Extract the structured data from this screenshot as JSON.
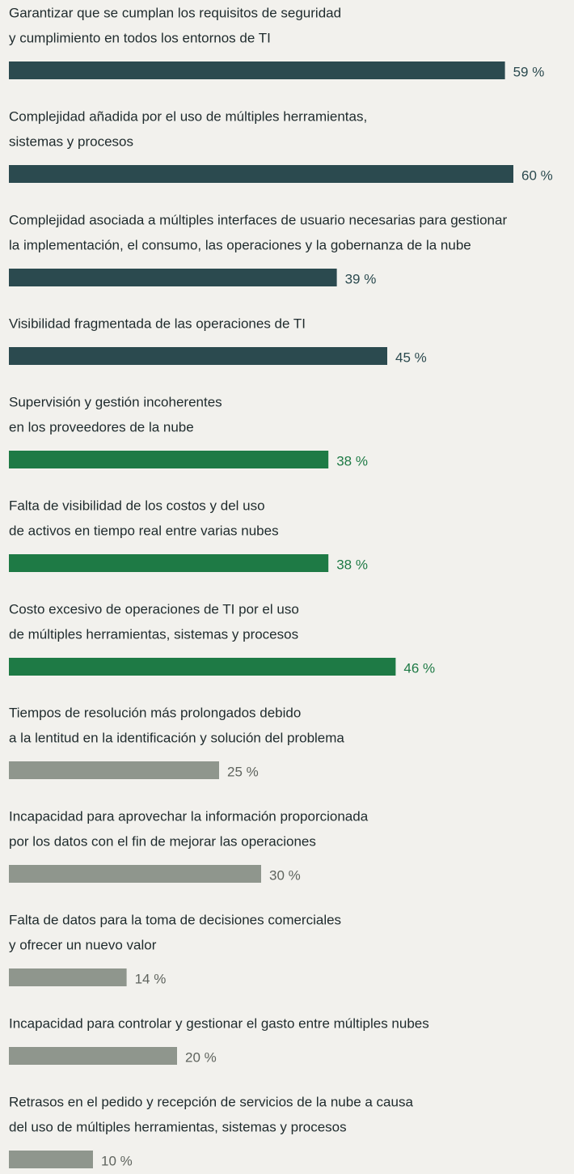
{
  "chart_data": {
    "type": "bar",
    "orientation": "horizontal",
    "categories": [
      [
        "Garantizar que se cumplan los requisitos de seguridad",
        "y cumplimiento en todos los entornos de TI"
      ],
      [
        "Complejidad añadida por el uso de múltiples herramientas,",
        "sistemas y procesos"
      ],
      [
        "Complejidad asociada a múltiples interfaces de usuario necesarias para gestionar",
        "la implementación, el consumo, las operaciones y la gobernanza de la nube"
      ],
      [
        "Visibilidad fragmentada de las operaciones de TI"
      ],
      [
        "Supervisión y gestión incoherentes",
        "en los proveedores de la nube"
      ],
      [
        "Falta de visibilidad de los costos y del uso",
        "de activos en tiempo real entre varias nubes"
      ],
      [
        "Costo excesivo de operaciones de TI por el uso",
        "de múltiples herramientas, sistemas y procesos"
      ],
      [
        "Tiempos de resolución más prolongados debido",
        "a la lentitud en la identificación y solución del problema"
      ],
      [
        "Incapacidad para aprovechar la información proporcionada",
        "por los datos con el fin de mejorar las operaciones"
      ],
      [
        "Falta de datos para la toma de decisiones comerciales",
        "y ofrecer un nuevo valor"
      ],
      [
        "Incapacidad para controlar y gestionar el gasto entre múltiples nubes"
      ],
      [
        "Retrasos en el pedido y recepción de servicios de la nube a causa",
        "del uso de múltiples herramientas, sistemas y procesos"
      ]
    ],
    "values": [
      59,
      60,
      39,
      45,
      38,
      38,
      46,
      25,
      30,
      14,
      20,
      10
    ],
    "value_labels": [
      "59 %",
      "60 %",
      "39 %",
      "45 %",
      "38 %",
      "38 %",
      "46 %",
      "25 %",
      "30 %",
      "14 %",
      "20 %",
      "10 %"
    ],
    "colors": [
      "#2b4a4f",
      "#2b4a4f",
      "#2b4a4f",
      "#2b4a4f",
      "#1e7a45",
      "#1e7a45",
      "#1e7a45",
      "#8f968d",
      "#8f968d",
      "#8f968d",
      "#8f968d",
      "#8f968d"
    ],
    "label_colors": [
      "#2b4a4f",
      "#2b4a4f",
      "#2b4a4f",
      "#2b4a4f",
      "#1e7a45",
      "#1e7a45",
      "#1e7a45",
      "#5f645e",
      "#5f645e",
      "#5f645e",
      "#5f645e",
      "#5f645e"
    ],
    "xlim": [
      0,
      60
    ]
  }
}
